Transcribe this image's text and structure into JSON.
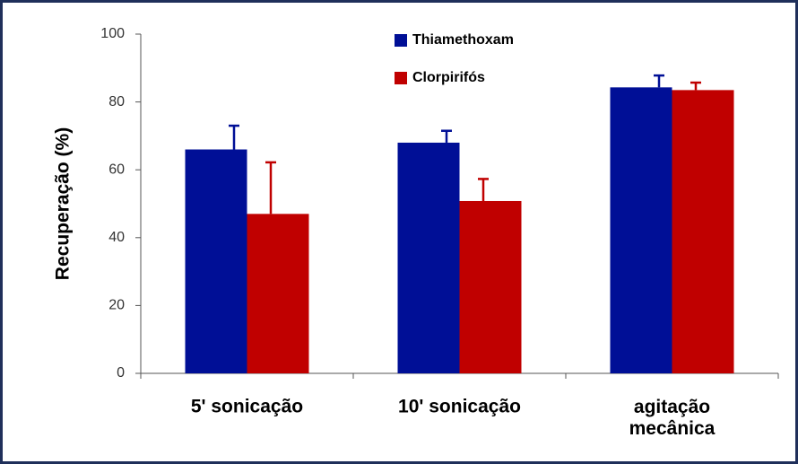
{
  "chart_data": {
    "type": "bar",
    "y_label": "Recuperação (%)",
    "categories": [
      "5' sonicação",
      "10' sonicação",
      "agitação\nmecânica"
    ],
    "series": [
      {
        "name": "Thiamethoxam",
        "color": "#000f96",
        "values": [
          66,
          68,
          84.3
        ],
        "errors": [
          7,
          3.5,
          3.5
        ]
      },
      {
        "name": "Clorpirifós",
        "color": "#c00000",
        "values": [
          47,
          50.8,
          83.5
        ],
        "errors": [
          15.2,
          6.5,
          2.2
        ]
      }
    ],
    "ylim": [
      0,
      100
    ],
    "yticks": [
      0,
      20,
      40,
      60,
      80,
      100
    ]
  }
}
